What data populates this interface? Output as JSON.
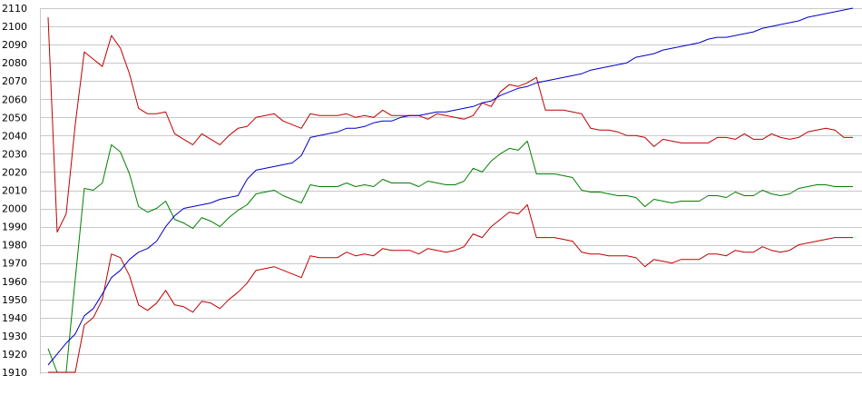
{
  "chart_data": {
    "type": "line",
    "title": "",
    "xlabel": "",
    "ylabel": "",
    "ylim": [
      1910,
      2110
    ],
    "yticks": [
      1910,
      1920,
      1930,
      1940,
      1950,
      1960,
      1970,
      1980,
      1990,
      2000,
      2010,
      2020,
      2030,
      2040,
      2050,
      2060,
      2070,
      2080,
      2090,
      2100,
      2110
    ],
    "grid": true,
    "legend": "none",
    "colors": {
      "grid": "#c8c8c8",
      "upper_band": "#c00000",
      "middle": "#008000",
      "lower_band": "#c00000",
      "trend": "#0000c8"
    },
    "x": [
      1,
      2,
      3,
      4,
      5,
      6,
      7,
      8,
      9,
      10,
      11,
      12,
      13,
      14,
      15,
      16,
      17,
      18,
      19,
      20,
      21,
      22,
      23,
      24,
      25,
      26,
      27,
      28,
      29,
      30,
      31,
      32,
      33,
      34,
      35,
      36,
      37,
      38,
      39,
      40,
      41,
      42,
      43,
      44,
      45,
      46,
      47,
      48,
      49,
      50,
      51,
      52,
      53,
      54,
      55,
      56,
      57,
      58,
      59,
      60,
      61,
      62,
      63,
      64,
      65,
      66,
      67,
      68,
      69,
      70,
      71,
      72,
      73,
      74,
      75,
      76,
      77,
      78,
      79,
      80,
      81,
      82,
      83,
      84,
      85,
      86,
      87,
      88,
      89,
      90
    ],
    "series": [
      {
        "key": "upper_band",
        "values": [
          2105,
          1987,
          1997,
          2046,
          2086,
          2082,
          2078,
          2095,
          2088,
          2074,
          2055,
          2052,
          2052,
          2053,
          2041,
          2038,
          2035,
          2041,
          2038,
          2035,
          2040,
          2044,
          2045,
          2050,
          2051,
          2052,
          2048,
          2046,
          2044,
          2052,
          2051,
          2051,
          2051,
          2052,
          2050,
          2051,
          2050,
          2054,
          2051,
          2051,
          2051,
          2051,
          2049,
          2052,
          2051,
          2050,
          2049,
          2051,
          2058,
          2056,
          2064,
          2068,
          2067,
          2069,
          2072,
          2054,
          2054,
          2054,
          2053,
          2052,
          2044,
          2043,
          2043,
          2042,
          2040,
          2040,
          2039,
          2034,
          2038,
          2037,
          2036,
          2036,
          2036,
          2036,
          2039,
          2039,
          2038,
          2041,
          2038,
          2038,
          2041,
          2039,
          2038,
          2039,
          2042,
          2043,
          2044,
          2043,
          2039,
          2039
        ]
      },
      {
        "key": "middle",
        "values": [
          1923,
          1910,
          1910,
          1961,
          2011,
          2010,
          2014,
          2035,
          2031,
          2019,
          2001,
          1998,
          2000,
          2004,
          1994,
          1992,
          1989,
          1995,
          1993,
          1990,
          1995,
          1999,
          2002,
          2008,
          2009,
          2010,
          2007,
          2005,
          2003,
          2013,
          2012,
          2012,
          2012,
          2014,
          2012,
          2013,
          2012,
          2016,
          2014,
          2014,
          2014,
          2012,
          2015,
          2014,
          2013,
          2013,
          2015,
          2022,
          2020,
          2026,
          2030,
          2033,
          2032,
          2037,
          2019,
          2019,
          2019,
          2018,
          2017,
          2010,
          2009,
          2009,
          2008,
          2007,
          2007,
          2006,
          2001,
          2005,
          2004,
          2003,
          2004,
          2004,
          2004,
          2007,
          2007,
          2006,
          2009,
          2007,
          2007,
          2010,
          2008,
          2007,
          2008,
          2011,
          2012,
          2013,
          2013,
          2012,
          2012,
          2012
        ]
      },
      {
        "key": "lower_band",
        "values": [
          1910,
          1910,
          1910,
          1910,
          1936,
          1940,
          1950,
          1975,
          1973,
          1963,
          1947,
          1944,
          1948,
          1955,
          1947,
          1946,
          1943,
          1949,
          1948,
          1945,
          1950,
          1954,
          1959,
          1966,
          1967,
          1968,
          1966,
          1964,
          1962,
          1974,
          1973,
          1973,
          1973,
          1976,
          1974,
          1975,
          1974,
          1978,
          1977,
          1977,
          1977,
          1975,
          1978,
          1977,
          1976,
          1977,
          1979,
          1986,
          1984,
          1990,
          1994,
          1998,
          1997,
          2002,
          1984,
          1984,
          1984,
          1983,
          1982,
          1976,
          1975,
          1975,
          1974,
          1974,
          1974,
          1973,
          1968,
          1972,
          1971,
          1970,
          1972,
          1972,
          1972,
          1975,
          1975,
          1974,
          1977,
          1976,
          1976,
          1979,
          1977,
          1976,
          1977,
          1980,
          1981,
          1982,
          1983,
          1984,
          1984,
          1984
        ]
      },
      {
        "key": "trend",
        "values": [
          1914,
          1920,
          1926,
          1931,
          1941,
          1945,
          1953,
          1962,
          1966,
          1972,
          1976,
          1978,
          1982,
          1990,
          1996,
          2000,
          2001,
          2002,
          2003,
          2005,
          2006,
          2007,
          2016,
          2021,
          2022,
          2023,
          2024,
          2025,
          2029,
          2039,
          2040,
          2041,
          2042,
          2044,
          2044,
          2045,
          2047,
          2048,
          2048,
          2050,
          2051,
          2051,
          2052,
          2053,
          2053,
          2054,
          2055,
          2056,
          2058,
          2059,
          2062,
          2064,
          2066,
          2067,
          2069,
          2070,
          2071,
          2072,
          2073,
          2074,
          2076,
          2077,
          2078,
          2079,
          2080,
          2083,
          2084,
          2085,
          2087,
          2088,
          2089,
          2090,
          2091,
          2093,
          2094,
          2094,
          2095,
          2096,
          2097,
          2099,
          2100,
          2101,
          2102,
          2103,
          2105,
          2106,
          2107,
          2108,
          2109,
          2110
        ]
      }
    ]
  }
}
